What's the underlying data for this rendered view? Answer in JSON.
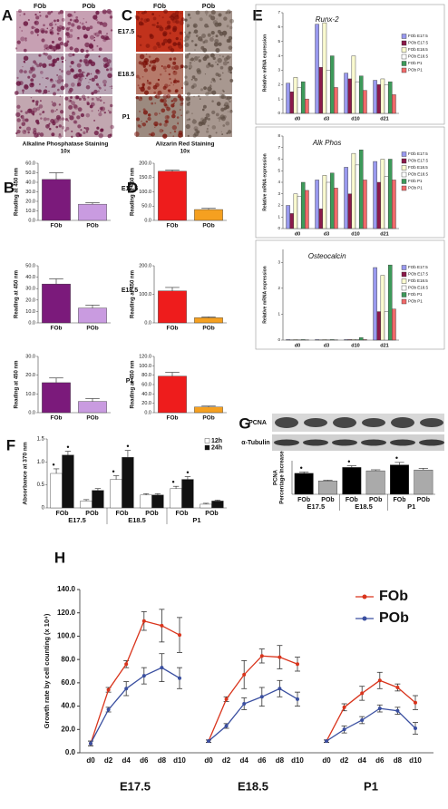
{
  "figure": {
    "panel_labels": [
      "A",
      "B",
      "C",
      "D",
      "E",
      "F",
      "G",
      "H"
    ],
    "micrograph_cols": [
      "FOb",
      "POb"
    ],
    "stages": [
      "E17.5",
      "E18.5",
      "P1"
    ],
    "alp_caption": "Alkaline Phosphatase Staining",
    "ars_caption": "Alizarin Red Staining",
    "magnification": "10x",
    "blot_labels": [
      "PCNA",
      "α-Tubulin"
    ]
  },
  "chart_data": [
    {
      "type": "bar",
      "categories": [
        "FOb",
        "POb"
      ],
      "ylabel": "Reading at 450 nm",
      "ylim": [
        0,
        60
      ],
      "yticks": [
        {
          "value": 0,
          "label": "0.0"
        },
        {
          "value": 10,
          "label": "10.0"
        },
        {
          "value": 20,
          "label": "20.0"
        },
        {
          "value": 30,
          "label": "30.0"
        },
        {
          "value": 40,
          "label": "40.0"
        },
        {
          "value": 50,
          "label": "50.0"
        },
        {
          "value": 60,
          "label": "60.0"
        }
      ],
      "series": [
        {
          "colors": [
            "#7b1a7b",
            "#c99be0"
          ],
          "values": [
            43,
            17
          ],
          "errors": [
            7,
            1.5
          ]
        }
      ]
    },
    {
      "type": "bar",
      "categories": [
        "FOb",
        "POb"
      ],
      "ylabel": "Reading at 450 nm",
      "ylim": [
        0,
        50
      ],
      "yticks": [
        {
          "value": 0,
          "label": "0.0"
        },
        {
          "value": 10,
          "label": "10.0"
        },
        {
          "value": 20,
          "label": "20.0"
        },
        {
          "value": 30,
          "label": "30.0"
        },
        {
          "value": 40,
          "label": "40.0"
        },
        {
          "value": 50,
          "label": "50.0"
        }
      ],
      "series": [
        {
          "colors": [
            "#7b1a7b",
            "#c99be0"
          ],
          "values": [
            34,
            13
          ],
          "errors": [
            4.5,
            2.5
          ]
        }
      ]
    },
    {
      "type": "bar",
      "categories": [
        "FOb",
        "POb"
      ],
      "ylabel": "Reading at 450 nm",
      "ylim": [
        0,
        30
      ],
      "yticks": [
        {
          "value": 0,
          "label": "0.0"
        },
        {
          "value": 10,
          "label": "10.0"
        },
        {
          "value": 20,
          "label": "20.0"
        },
        {
          "value": 30,
          "label": "30.0"
        }
      ],
      "series": [
        {
          "colors": [
            "#7b1a7b",
            "#c99be0"
          ],
          "values": [
            16,
            6
          ],
          "errors": [
            2.5,
            1.5
          ]
        }
      ]
    },
    {
      "type": "bar",
      "categories": [
        "FOb",
        "POb"
      ],
      "ylabel": "Reading at 450 nm",
      "ylim": [
        0,
        200
      ],
      "yticks": [
        {
          "value": 0,
          "label": "0.0"
        },
        {
          "value": 50,
          "label": "50.0"
        },
        {
          "value": 100,
          "label": "100.0"
        },
        {
          "value": 150,
          "label": "150.0"
        },
        {
          "value": 200,
          "label": "200.0"
        }
      ],
      "series": [
        {
          "colors": [
            "#ee1c1c",
            "#f5a020"
          ],
          "values": [
            172,
            38
          ],
          "errors": [
            4,
            4
          ]
        }
      ]
    },
    {
      "type": "bar",
      "categories": [
        "FOb",
        "POb"
      ],
      "ylabel": "Reading at 450 nm",
      "ylim": [
        0,
        200
      ],
      "yticks": [
        {
          "value": 0,
          "label": "0.0"
        },
        {
          "value": 100,
          "label": "100.0"
        },
        {
          "value": 200,
          "label": "200.0"
        }
      ],
      "series": [
        {
          "colors": [
            "#ee1c1c",
            "#f5a020"
          ],
          "values": [
            112,
            18
          ],
          "errors": [
            12,
            3
          ]
        }
      ]
    },
    {
      "type": "bar",
      "categories": [
        "FOb",
        "POb"
      ],
      "ylabel": "Reading at 450 nm",
      "ylim": [
        0,
        120
      ],
      "yticks": [
        {
          "value": 0,
          "label": "0.0"
        },
        {
          "value": 20,
          "label": "20.0"
        },
        {
          "value": 40,
          "label": "40.0"
        },
        {
          "value": 60,
          "label": "60.0"
        },
        {
          "value": 80,
          "label": "80.0"
        },
        {
          "value": 100,
          "label": "100.0"
        },
        {
          "value": 120,
          "label": "120.0"
        }
      ],
      "series": [
        {
          "colors": [
            "#ee1c1c",
            "#f5a020"
          ],
          "values": [
            78,
            12
          ],
          "errors": [
            8,
            2
          ]
        }
      ]
    },
    {
      "type": "bar",
      "title": "Runx-2",
      "ylabel": "Relative mRNA expression",
      "categories": [
        "d0",
        "d3",
        "d10",
        "d21"
      ],
      "ylim": [
        0,
        7
      ],
      "yticks": [
        0,
        1,
        2,
        3,
        4,
        5,
        6,
        7
      ],
      "legend": true,
      "series": [
        {
          "name": "FOb E17.5",
          "color": "#9999ee",
          "values": [
            2.1,
            6.2,
            2.8,
            2.3
          ]
        },
        {
          "name": "POb E17.5",
          "color": "#8b1a4a",
          "values": [
            1.5,
            3.2,
            2.4,
            2.0
          ]
        },
        {
          "name": "FOb E18.5",
          "color": "#fafad0",
          "values": [
            2.5,
            6.3,
            4.0,
            2.4
          ]
        },
        {
          "name": "POb E18.5",
          "color": "#ffffff",
          "values": [
            1.8,
            3.0,
            2.2,
            2.0
          ]
        },
        {
          "name": "FOb P1",
          "color": "#3d9a5a",
          "values": [
            2.2,
            4.0,
            2.6,
            2.2
          ]
        },
        {
          "name": "POb P1",
          "color": "#f06a6a",
          "values": [
            1.0,
            1.8,
            1.6,
            1.3
          ]
        }
      ]
    },
    {
      "type": "bar",
      "title": "Alk Phos",
      "ylabel": "Relative mRNA expression",
      "categories": [
        "d0",
        "d3",
        "d10",
        "d21"
      ],
      "ylim": [
        0,
        8
      ],
      "yticks": [
        0,
        1,
        2,
        3,
        4,
        5,
        6,
        7,
        8
      ],
      "legend": true,
      "series": [
        {
          "name": "FOb E17.5",
          "color": "#9999ee",
          "values": [
            2.0,
            4.2,
            5.3,
            5.8
          ]
        },
        {
          "name": "POb E17.5",
          "color": "#8b1a4a",
          "values": [
            1.3,
            1.7,
            3.0,
            4.0
          ]
        },
        {
          "name": "FOb E18.5",
          "color": "#fafad0",
          "values": [
            3.0,
            4.6,
            6.5,
            6.0
          ]
        },
        {
          "name": "POb E18.5",
          "color": "#ffffff",
          "values": [
            2.8,
            4.0,
            5.5,
            4.5
          ]
        },
        {
          "name": "FOb P1",
          "color": "#3d9a5a",
          "values": [
            4.0,
            4.8,
            6.8,
            6.0
          ]
        },
        {
          "name": "POb P1",
          "color": "#f06a6a",
          "values": [
            3.3,
            3.5,
            4.2,
            4.2
          ]
        }
      ]
    },
    {
      "type": "bar",
      "title": "Osteocalcin",
      "ylabel": "Relative mRNA expression",
      "categories": [
        "d0",
        "d3",
        "d10",
        "d21"
      ],
      "ylim": [
        0,
        3.5
      ],
      "yticks": [
        0,
        1,
        2,
        3
      ],
      "legend": true,
      "series": [
        {
          "name": "FOb E17.5",
          "color": "#9999ee",
          "values": [
            0.02,
            0.02,
            0.02,
            2.8
          ]
        },
        {
          "name": "POb E17.5",
          "color": "#8b1a4a",
          "values": [
            0.01,
            0.01,
            0.02,
            1.1
          ]
        },
        {
          "name": "FOb E18.5",
          "color": "#fafad0",
          "values": [
            0.02,
            0.02,
            0.03,
            2.5
          ]
        },
        {
          "name": "POb E18.5",
          "color": "#ffffff",
          "values": [
            0.01,
            0.01,
            0.02,
            1.1
          ]
        },
        {
          "name": "FOb P1",
          "color": "#3d9a5a",
          "values": [
            0.02,
            0.02,
            0.1,
            2.9
          ]
        },
        {
          "name": "POb P1",
          "color": "#f06a6a",
          "values": [
            0.01,
            0.01,
            0.02,
            1.2
          ]
        }
      ]
    },
    {
      "type": "bar",
      "ylabel": "Absorbance at 370 nm",
      "categories": [
        "FOb",
        "POb",
        "FOb",
        "POb",
        "FOb",
        "POb"
      ],
      "groups": [
        "E17.5",
        "E18.5",
        "P1"
      ],
      "ylim": [
        0,
        1.5
      ],
      "yticks": [
        0,
        0.5,
        {
          "value": 1,
          "label": "1.0"
        },
        1.5
      ],
      "legend": true,
      "sig_marker": "•",
      "series": [
        {
          "name": "12h",
          "color": "#ffffff",
          "values": [
            0.75,
            0.15,
            0.62,
            0.28,
            0.42,
            0.08
          ],
          "errors": [
            0.1,
            0.03,
            0.08,
            0.03,
            0.05,
            0.02
          ],
          "sig": [
            true,
            false,
            true,
            false,
            true,
            false
          ]
        },
        {
          "name": "24h",
          "color": "#111111",
          "values": [
            1.15,
            0.38,
            1.1,
            0.28,
            0.62,
            0.15
          ],
          "errors": [
            0.08,
            0.04,
            0.15,
            0.03,
            0.06,
            0.02
          ],
          "sig": [
            true,
            false,
            true,
            false,
            true,
            false
          ]
        }
      ]
    },
    {
      "type": "bar",
      "ylabel": [
        "PCNA",
        "Percentage Increase"
      ],
      "categories": [
        "FOb",
        "POb",
        "FOb",
        "POb",
        "FOb",
        "POb"
      ],
      "groups": [
        "E17.5",
        "E18.5",
        "P1"
      ],
      "ylim": [
        0,
        200
      ],
      "sig_marker": "•",
      "series": [
        {
          "colors": [
            "#000000",
            "#aaaaaa",
            "#000000",
            "#aaaaaa",
            "#000000",
            "#aaaaaa"
          ],
          "values": [
            125,
            80,
            160,
            140,
            175,
            145
          ],
          "errors": [
            8,
            4,
            10,
            6,
            15,
            10
          ],
          "sig": [
            true,
            false,
            true,
            false,
            true,
            false
          ]
        }
      ]
    },
    {
      "type": "line",
      "ylabel": "Growth rate by cell counting (x 10⁴)",
      "ylim": [
        0,
        140
      ],
      "yticks": [
        {
          "value": 0,
          "label": "0.0"
        },
        {
          "value": 20,
          "label": "20.0"
        },
        {
          "value": 40,
          "label": "40.0"
        },
        {
          "value": 60,
          "label": "60.0"
        },
        {
          "value": 80,
          "label": "80.0"
        },
        {
          "value": 100,
          "label": "100.0"
        },
        {
          "value": 120,
          "label": "120.0"
        },
        {
          "value": 140,
          "label": "140.0"
        }
      ],
      "series": [
        {
          "name": "FOb",
          "color": "#d9341c"
        },
        {
          "name": "POb",
          "color": "#3a4fa0"
        }
      ],
      "groups": [
        {
          "label": "E17.5",
          "categories": [
            "d0",
            "d2",
            "d4",
            "d6",
            "d8",
            "d10"
          ],
          "series": [
            {
              "values": [
                8,
                54,
                76,
                113,
                109,
                101
              ],
              "errors": [
                2,
                2,
                3,
                8,
                14,
                15
              ]
            },
            {
              "values": [
                8,
                37,
                55,
                66,
                73,
                64
              ],
              "errors": [
                2,
                2,
                6,
                7,
                12,
                9
              ]
            }
          ]
        },
        {
          "label": "E18.5",
          "categories": [
            "d0",
            "d2",
            "d4",
            "d6",
            "d8",
            "d10"
          ],
          "series": [
            {
              "values": [
                10,
                46,
                67,
                83,
                82,
                76
              ],
              "errors": [
                1,
                2,
                12,
                6,
                10,
                6
              ]
            },
            {
              "values": [
                10,
                23,
                42,
                48,
                55,
                46
              ],
              "errors": [
                1,
                2,
                5,
                8,
                7,
                6
              ]
            }
          ]
        },
        {
          "label": "P1",
          "categories": [
            "d0",
            "d2",
            "d4",
            "d6",
            "d8",
            "d10"
          ],
          "series": [
            {
              "values": [
                10,
                39,
                51,
                62,
                56,
                43
              ],
              "errors": [
                1,
                3,
                6,
                7,
                3,
                6
              ]
            },
            {
              "values": [
                10,
                20,
                28,
                38,
                36,
                21
              ],
              "errors": [
                1,
                3,
                3,
                3,
                3,
                5
              ]
            }
          ]
        }
      ]
    }
  ]
}
